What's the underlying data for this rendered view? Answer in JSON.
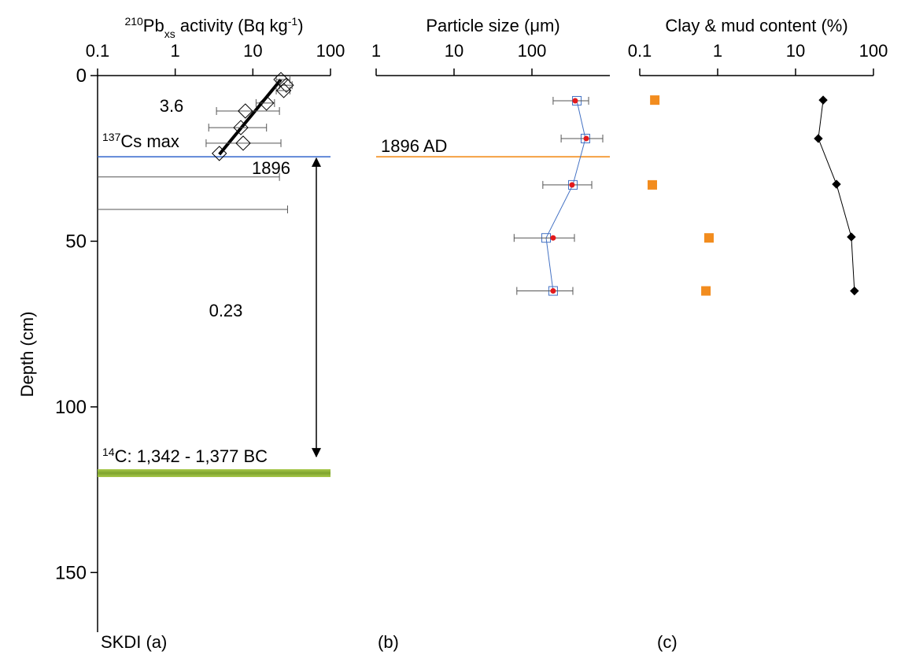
{
  "chart_data": [
    {
      "type": "scatter",
      "xlabel_parts": [
        {
          "text": "210",
          "style": "sup"
        },
        {
          "text": "Pb"
        },
        {
          "text": "xs",
          "style": "sub"
        },
        {
          "text": " activity (Bq kg"
        },
        {
          "text": "-1",
          "style": "sup"
        },
        {
          "text": ")"
        }
      ],
      "ylabel": "Depth (cm)",
      "xlog": true,
      "xlim": [
        0.1,
        100
      ],
      "xticks": [
        0.1,
        1,
        10,
        100
      ],
      "ylim": [
        0,
        168
      ],
      "yticks": [
        0,
        50,
        100,
        150
      ],
      "y_inverted": true,
      "series": [
        {
          "color": "#000000",
          "marker": "diamond-open",
          "x": [
            23,
            27,
            25,
            15,
            8,
            7,
            7.5,
            3.7
          ],
          "y": [
            1.2,
            2.9,
            4.5,
            8.3,
            10.7,
            15.7,
            20.4,
            23.5
          ],
          "x_err_low": [
            20,
            22,
            20,
            11,
            3.4,
            2.7,
            2.5,
            null
          ],
          "x_err_high": [
            30,
            32,
            30,
            19,
            22,
            15,
            23,
            null
          ]
        }
      ],
      "bars_only": {
        "y": [
          30.6,
          40.4
        ],
        "x_err_high": [
          22,
          28
        ]
      },
      "fit": {
        "x": [
          23,
          3.7
        ],
        "y": [
          1.2,
          23.8
        ],
        "label": "3.6"
      },
      "cs_max": {
        "depth": 24.5,
        "label_parts": [
          {
            "text": "137",
            "style": "sup"
          },
          {
            "text": "Cs max"
          }
        ],
        "color": "#3366cc",
        "year": "1896",
        "year_color": "#e31a1c"
      },
      "rate": {
        "label": "0.23",
        "from": 24.5,
        "to": 115
      },
      "c14": {
        "depth": 120,
        "label_parts": [
          {
            "text": "14",
            "style": "sup"
          },
          {
            "text": "C: 1,342 - 1,377 BC"
          }
        ],
        "color": "#8db33a",
        "label_color": "#e31a1c"
      },
      "panel_label": "SKDI (a)"
    },
    {
      "type": "scatter",
      "xlabel_parts": [
        {
          "text": "Particle size (μm)"
        }
      ],
      "xlog": true,
      "xlim": [
        1,
        1000
      ],
      "xticks": [
        1,
        10,
        100
      ],
      "ylim": [
        0,
        168
      ],
      "y_inverted": true,
      "series": [
        {
          "color": "#4472c4",
          "marker": "square-open",
          "line": true,
          "x": [
            377,
            486,
            335,
            152,
            187
          ],
          "y": [
            7.6,
            19,
            33,
            49,
            65
          ]
        },
        {
          "color": "#e31a1c",
          "marker": "dot",
          "x": [
            359,
            498,
            327,
            187,
            187
          ],
          "y": [
            7.6,
            19,
            33,
            49,
            65
          ],
          "x_err_low": [
            187,
            237,
            138,
            59,
            64
          ],
          "x_err_high": [
            534,
            811,
            586,
            351,
            335
          ]
        }
      ],
      "event_line": {
        "depth": 24.5,
        "label": "1896 AD",
        "color": "#f5a042",
        "label_color": "#3366cc"
      },
      "panel_label": "(b)"
    },
    {
      "type": "scatter",
      "xlabel_parts": [
        {
          "text": "Clay & mud content (%)"
        }
      ],
      "xlog": true,
      "xlim": [
        0.1,
        100
      ],
      "xticks": [
        0.1,
        1,
        10,
        100
      ],
      "ylim": [
        0,
        168
      ],
      "y_inverted": true,
      "series": [
        {
          "color": "#f28c1e",
          "marker": "square",
          "x": [
            0.156,
            0.145,
            0.774,
            0.707
          ],
          "y": [
            7.4,
            33,
            49,
            65
          ]
        },
        {
          "color": "#000000",
          "marker": "diamond",
          "line": true,
          "x": [
            22.6,
            19.6,
            33.5,
            52,
            57
          ],
          "y": [
            7.4,
            19,
            32.8,
            48.7,
            65
          ]
        }
      ],
      "panel_label": "(c)"
    }
  ]
}
